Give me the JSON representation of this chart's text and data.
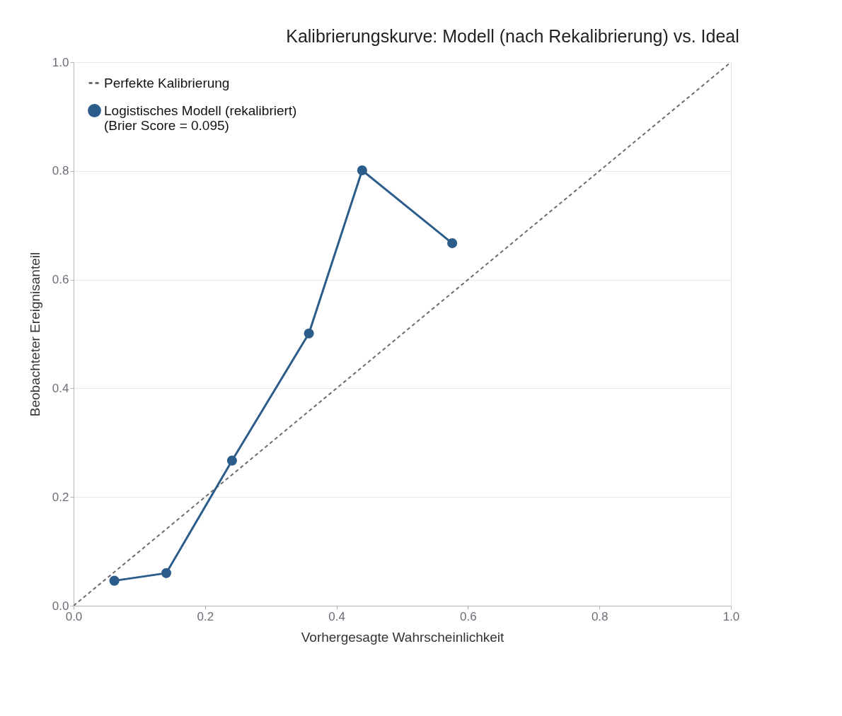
{
  "chart_data": {
    "type": "line",
    "title": "Kalibrierungskurve: Modell (nach Rekalibrierung) vs. Ideal",
    "xlabel": "Vorhergesagte Wahrscheinlichkeit",
    "ylabel": "Beobachteter Ereignisanteil",
    "xlim": [
      0,
      1
    ],
    "ylim": [
      0,
      1
    ],
    "xticks": [
      {
        "value": 0,
        "label": "0.0"
      },
      0.2,
      0.4,
      0.6,
      0.8,
      {
        "value": 1,
        "label": "1.0"
      }
    ],
    "yticks": [
      {
        "value": 0,
        "label": "0.0"
      },
      0.2,
      0.4,
      0.6,
      0.8,
      {
        "value": 1,
        "label": "1.0"
      }
    ],
    "grid": "y",
    "legend": "top left",
    "series": [
      {
        "name": "Perfekte Kalibrierung",
        "color": "#6b6b70",
        "line_style": "dashed",
        "marker": "none",
        "x": [
          0,
          1
        ],
        "values": [
          0,
          1
        ]
      },
      {
        "name": "Logistisches Modell (rekalibriert)\n(Brier Score = 0.095)",
        "color": "#2b5c8a",
        "line_style": "solid",
        "marker": "circle",
        "x": [
          0.062,
          0.141,
          0.241,
          0.358,
          0.439,
          0.576
        ],
        "values": [
          0.046,
          0.06,
          0.267,
          0.501,
          0.801,
          0.667
        ]
      }
    ]
  }
}
